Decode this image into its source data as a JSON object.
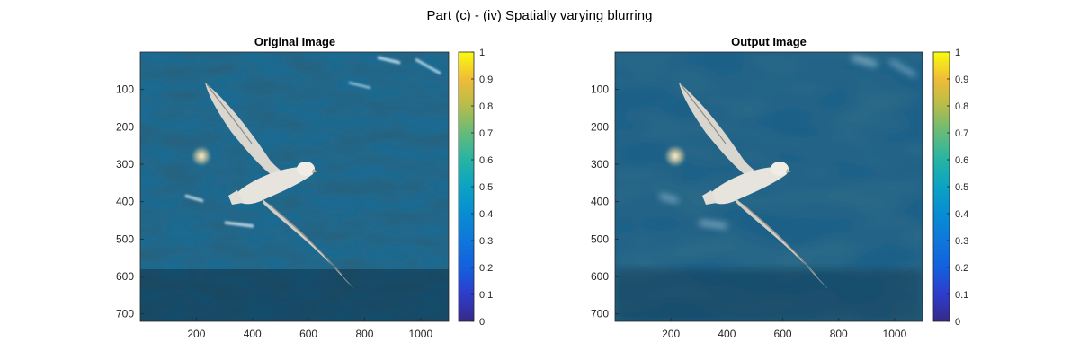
{
  "figure": {
    "title": "Part (c) - (iv) Spatially varying blurring"
  },
  "chart_data": [
    {
      "type": "heatmap",
      "title": "Original Image",
      "xlim": [
        0,
        1100
      ],
      "ylim": [
        720,
        0
      ],
      "xticks": [
        200,
        400,
        600,
        800,
        1000
      ],
      "yticks": [
        100,
        200,
        300,
        400,
        500,
        600,
        700
      ],
      "content": "photo of seabird over ocean water",
      "blurred": false,
      "colorbar": {
        "ticks": [
          0,
          0.1,
          0.2,
          0.3,
          0.4,
          0.5,
          0.6,
          0.7,
          0.8,
          0.9,
          1
        ],
        "limits": [
          0,
          1
        ],
        "colormap": "parula"
      }
    },
    {
      "type": "heatmap",
      "title": "Output Image",
      "xlim": [
        0,
        1100
      ],
      "ylim": [
        720,
        0
      ],
      "xticks": [
        200,
        400,
        600,
        800,
        1000
      ],
      "yticks": [
        100,
        200,
        300,
        400,
        500,
        600,
        700
      ],
      "content": "photo of seabird over ocean water",
      "blurred": true,
      "colorbar": {
        "ticks": [
          0,
          0.1,
          0.2,
          0.3,
          0.4,
          0.5,
          0.6,
          0.7,
          0.8,
          0.9,
          1
        ],
        "limits": [
          0,
          1
        ],
        "colormap": "parula"
      }
    }
  ],
  "colors": {
    "water_dark": "#06202f",
    "water_mid": "#145a7e",
    "water_light": "#3a90b8",
    "bird": "#e2e0d8"
  }
}
